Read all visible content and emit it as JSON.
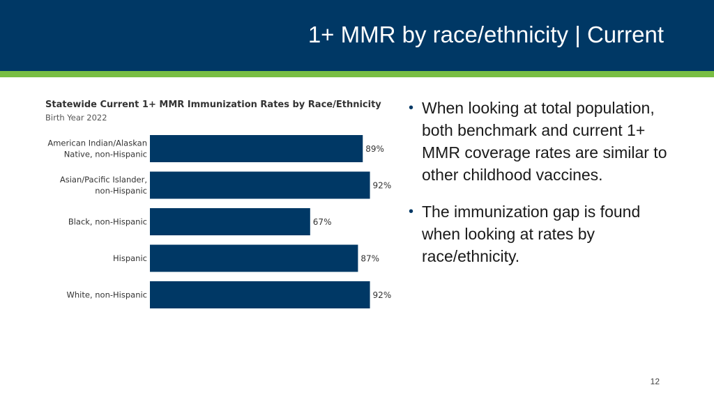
{
  "slide": {
    "title": "1+ MMR by race/ethnicity | Current",
    "page_number": "12",
    "header_color": "#003865",
    "accent_color": "#78be43"
  },
  "bullets": [
    "When looking at total population, both benchmark and current 1+ MMR coverage rates are similar to other childhood vaccines.",
    "The immunization gap is found when looking at rates by race/ethnicity."
  ],
  "chart_data": {
    "type": "bar",
    "orientation": "horizontal",
    "title": "Statewide Current 1+ MMR Immunization Rates by Race/Ethnicity",
    "subtitle": "Birth Year 2022",
    "categories": [
      [
        "American Indian/Alaskan",
        "Native, non-Hispanic"
      ],
      [
        "Asian/Pacific Islander,",
        "non-Hispanic"
      ],
      [
        "Black, non-Hispanic"
      ],
      [
        "Hispanic"
      ],
      [
        "White, non-Hispanic"
      ]
    ],
    "values": [
      89,
      92,
      67,
      87,
      92
    ],
    "value_labels": [
      "89%",
      "92%",
      "67%",
      "87%",
      "92%"
    ],
    "xlim": [
      0,
      100
    ],
    "bar_color": "#003865",
    "grid": false,
    "legend": "none"
  }
}
